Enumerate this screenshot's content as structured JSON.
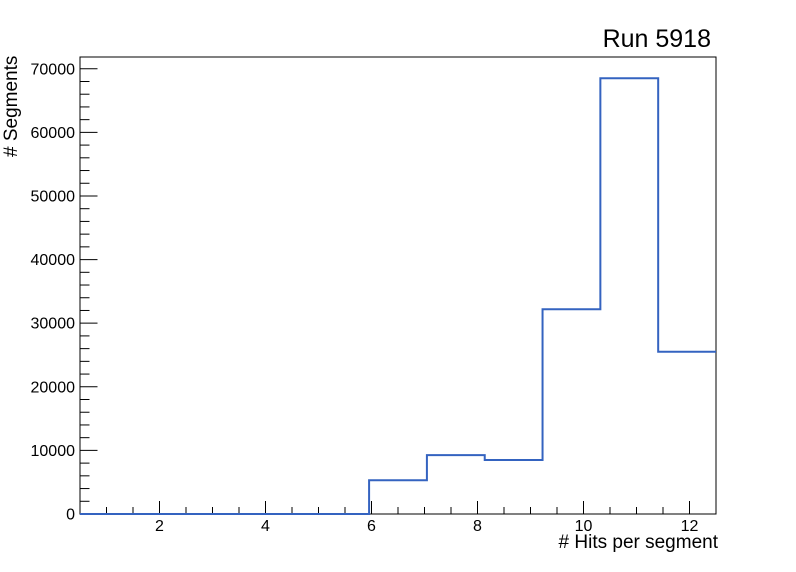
{
  "chart_data": {
    "type": "bar",
    "subtype": "step-histogram",
    "title": "Run 5918",
    "xlabel": "# Hits per segment",
    "ylabel": "# Segments",
    "xlim": [
      0.5,
      12.5
    ],
    "ylim": [
      0,
      71850
    ],
    "n_bins": 11,
    "bin_edges": [
      0.5,
      1.5909,
      2.6818,
      3.7727,
      4.8636,
      5.9545,
      7.0455,
      8.1364,
      9.2273,
      10.3182,
      11.4091,
      12.5
    ],
    "values": [
      0,
      0,
      0,
      0,
      0,
      5300,
      9250,
      8500,
      32200,
      68500,
      25500
    ],
    "x_major_ticks": [
      2,
      4,
      6,
      8,
      10,
      12
    ],
    "x_minor_step": 0.5,
    "y_major_ticks": [
      0,
      10000,
      20000,
      30000,
      40000,
      50000,
      60000,
      70000
    ],
    "y_minor_step": 2000,
    "grid": false,
    "legend": "none",
    "line_color": "#3463c0",
    "axis_color": "#000000",
    "background_color": "#ffffff"
  }
}
